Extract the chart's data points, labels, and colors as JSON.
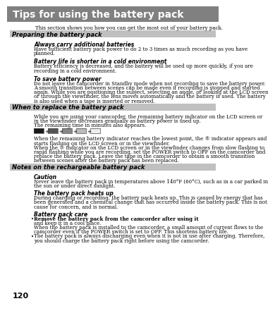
{
  "page_num": "120",
  "main_title": "Tips for using the battery pack",
  "main_title_bg": "#808080",
  "main_title_color": "#ffffff",
  "intro_text": "This section shows you how you can get the most out of your battery pack.",
  "section1_title": "Preparing the battery pack",
  "section2_title": "When to replace the battery pack",
  "section3_title": "Notes on the rechargeable battery pack",
  "section_bg": "#c0c0c0",
  "background_color": "#ffffff",
  "text_color": "#000000",
  "body_fontsize": 5.0,
  "heading_fontsize": 5.5,
  "section_title_fontsize": 6.0,
  "main_title_fontsize": 10.0,
  "subsections": [
    {
      "heading": "Always carry additional batteries",
      "body": "Have sufficient battery pack power to do 2 to 3 times as much recording as you have\nplanned."
    },
    {
      "heading": "Battery life is shorter in a cold environment",
      "body": "Battery efficiency is decreased, and the battery will be used up more quickly, if you are\nrecording in a cold environment."
    },
    {
      "heading": "To save battery power",
      "body": "Do not leave the camcorder in Standby mode when not recording to save the battery power.\nA smooth transition between scenes can be made even if recording is stopped and started\nagain. While you are positioning the subject, selecting an angle, or looking at the LCD screen\nor through the viewfinder, the lens moves automatically and the battery is used. The battery\nis also used when a tape is inserted or removed."
    }
  ],
  "section2_body1": "While you are using your camcorder, the remaining battery indicator on the LCD screen or\nin the viewfinder decreases gradually as battery power is used up.\nThe remaining time in minutes also appears.",
  "section2_body2": "When the remaining battery indicator reaches the lowest point, the ® indicator appears and\nstarts flashing on the LCD screen or in the viewfinder.\nWhen the ® indicator on the LCD screen or in the viewfinder changes from slow flashing to\nrapid flashing while you are recording, set the POWER switch to OFF on the camcorder and\nreplace the battery pack. Leave the tape in the camcorder to obtain a smooth transition\nbetween scenes after the battery pack has been replaced.",
  "notes_subsections": [
    {
      "heading": "Caution",
      "body": "Never leave the battery pack in temperatures above 140°F (60°C), such as in a car parked in\nthe sun or under direct sunlight."
    },
    {
      "heading": "The battery pack heats up",
      "body": "During charging or recording, the battery pack heats up. This is caused by energy that has\nbeen generated and a chemical change that has occurred inside the battery pack. This is not\ncause for concern, and is normal."
    },
    {
      "heading": "Battery pack care",
      "bullet1_bold": "Remove the battery pack from the camcorder after using it",
      "bullet1_normal": ", and keep it in a cool place.\nWhen the battery pack is installed to the camcorder, a small amount of current flows to the\ncamcorder even if the POWER switch is set to OFF. This shortens battery life.",
      "bullet2": "The battery pack is always discharging even when it is not in use after charging. Therefore,\nyou should charge the battery pack right before using the camcorder."
    }
  ]
}
